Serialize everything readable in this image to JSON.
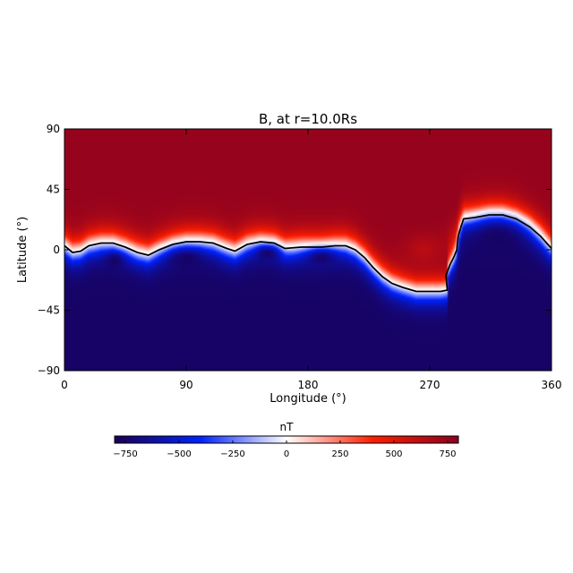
{
  "chart_data": {
    "type": "heatmap",
    "title": "B, at r=10.0Rs",
    "xlabel": "Longitude (°)",
    "ylabel": "Latitude (°)",
    "xlim": [
      0,
      360
    ],
    "ylim": [
      -90,
      90
    ],
    "xticks": [
      0,
      90,
      180,
      270,
      360
    ],
    "yticks": [
      90,
      45,
      0,
      -45,
      -90
    ],
    "ytick_labels": [
      "90",
      "45",
      "0",
      "−45",
      "−90"
    ],
    "colorscale": [
      "#1a0055",
      "#0022ff",
      "#ffffff",
      "#ff1e00",
      "#8a0020"
    ],
    "colorbar": {
      "label": "nT",
      "range": [
        -800,
        800
      ],
      "ticks": [
        -750,
        -500,
        -250,
        0,
        250,
        500,
        750
      ],
      "tick_labels": [
        "−750",
        "−500",
        "−250",
        "0",
        "250",
        "500",
        "750"
      ]
    },
    "neutral_line": [
      [
        0,
        3
      ],
      [
        6,
        -2
      ],
      [
        12,
        -1
      ],
      [
        18,
        3
      ],
      [
        27,
        5
      ],
      [
        36,
        5
      ],
      [
        45,
        2
      ],
      [
        54,
        -2
      ],
      [
        62,
        -4
      ],
      [
        70,
        0
      ],
      [
        80,
        4
      ],
      [
        90,
        6
      ],
      [
        100,
        6
      ],
      [
        110,
        5
      ],
      [
        120,
        1
      ],
      [
        126,
        -1
      ],
      [
        135,
        4
      ],
      [
        145,
        6
      ],
      [
        155,
        5
      ],
      [
        163,
        1
      ],
      [
        175,
        2
      ],
      [
        190,
        2
      ],
      [
        200,
        3
      ],
      [
        208,
        3
      ],
      [
        215,
        0
      ],
      [
        222,
        -6
      ],
      [
        228,
        -13
      ],
      [
        235,
        -20
      ],
      [
        242,
        -25
      ],
      [
        250,
        -28
      ],
      [
        260,
        -31
      ],
      [
        270,
        -31
      ],
      [
        278,
        -31
      ],
      [
        283,
        -30
      ],
      [
        282,
        -19
      ],
      [
        285,
        -11
      ],
      [
        288,
        -5
      ],
      [
        290,
        0
      ],
      [
        291,
        10
      ],
      [
        293,
        17
      ],
      [
        295,
        23
      ],
      [
        303,
        24
      ],
      [
        314,
        26
      ],
      [
        324,
        26
      ],
      [
        334,
        23
      ],
      [
        344,
        17
      ],
      [
        352,
        10
      ],
      [
        360,
        1
      ]
    ],
    "blobs": [
      {
        "lon": 37,
        "lat": -8,
        "a": 7,
        "b": 6,
        "value": -760
      },
      {
        "lon": 90,
        "lat": -7,
        "a": 14,
        "b": 8,
        "value": -760
      },
      {
        "lon": 150,
        "lat": -3,
        "a": 9,
        "b": 6,
        "value": -740
      },
      {
        "lon": 190,
        "lat": -6,
        "a": 12,
        "b": 7,
        "value": -740
      },
      {
        "lon": 265,
        "lat": 0,
        "a": 14,
        "b": 12,
        "value": 640
      },
      {
        "lon": 320,
        "lat": 8,
        "a": 20,
        "b": 14,
        "value": -760
      }
    ]
  }
}
